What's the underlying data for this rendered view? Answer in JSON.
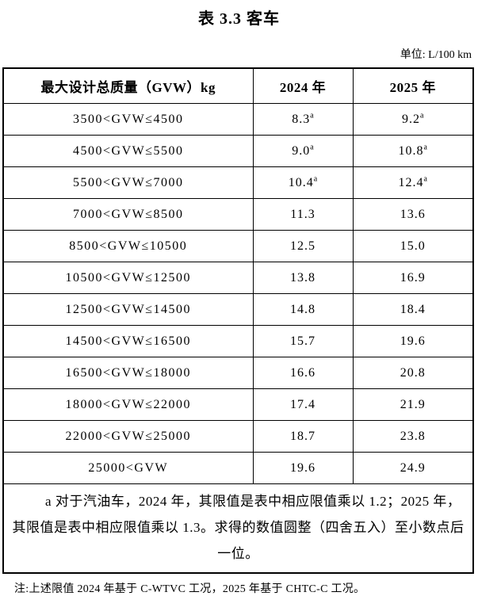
{
  "document": {
    "title": "表 3.3 客车",
    "unit_label": "单位: L/100 km",
    "note": "注:上述限值 2024 年基于 C-WTVC 工况，2025 年基于 CHTC-C 工况。"
  },
  "table": {
    "headers": {
      "gvw": "最大设计总质量（GVW）kg",
      "y2024": "2024 年",
      "y2025": "2025 年"
    },
    "rows": [
      {
        "range": "3500<GVW≤4500",
        "y2024": "8.3",
        "y2024_sup": "a",
        "y2025": "9.2",
        "y2025_sup": "a"
      },
      {
        "range": "4500<GVW≤5500",
        "y2024": "9.0",
        "y2024_sup": "a",
        "y2025": "10.8",
        "y2025_sup": "a"
      },
      {
        "range": "5500<GVW≤7000",
        "y2024": "10.4",
        "y2024_sup": "a",
        "y2025": "12.4",
        "y2025_sup": "a"
      },
      {
        "range": "7000<GVW≤8500",
        "y2024": "11.3",
        "y2024_sup": "",
        "y2025": "13.6",
        "y2025_sup": ""
      },
      {
        "range": "8500<GVW≤10500",
        "y2024": "12.5",
        "y2024_sup": "",
        "y2025": "15.0",
        "y2025_sup": ""
      },
      {
        "range": "10500<GVW≤12500",
        "y2024": "13.8",
        "y2024_sup": "",
        "y2025": "16.9",
        "y2025_sup": ""
      },
      {
        "range": "12500<GVW≤14500",
        "y2024": "14.8",
        "y2024_sup": "",
        "y2025": "18.4",
        "y2025_sup": ""
      },
      {
        "range": "14500<GVW≤16500",
        "y2024": "15.7",
        "y2024_sup": "",
        "y2025": "19.6",
        "y2025_sup": ""
      },
      {
        "range": "16500<GVW≤18000",
        "y2024": "16.6",
        "y2024_sup": "",
        "y2025": "20.8",
        "y2025_sup": ""
      },
      {
        "range": "18000<GVW≤22000",
        "y2024": "17.4",
        "y2024_sup": "",
        "y2025": "21.9",
        "y2025_sup": ""
      },
      {
        "range": "22000<GVW≤25000",
        "y2024": "18.7",
        "y2024_sup": "",
        "y2025": "23.8",
        "y2025_sup": ""
      },
      {
        "range": "25000<GVW",
        "y2024": "19.6",
        "y2024_sup": "",
        "y2025": "24.9",
        "y2025_sup": ""
      }
    ],
    "footnote": "a 对于汽油车，2024 年，其限值是表中相应限值乘以 1.2；2025 年，其限值是表中相应限值乘以 1.3。求得的数值圆整（四舍五入）至小数点后一位。"
  }
}
